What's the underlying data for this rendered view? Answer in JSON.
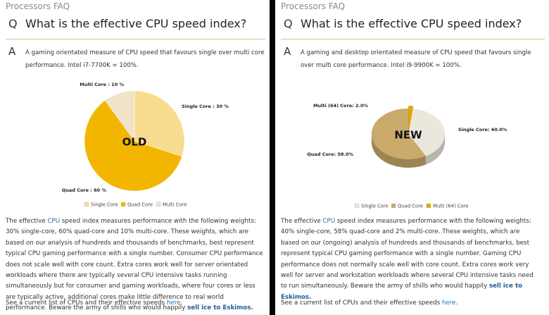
{
  "panels": [
    {
      "site": "Processors FAQ",
      "q": "Q",
      "question": "What is the effective CPU speed index?",
      "a": "A",
      "answer": "A gaming orientated measure of CPU speed that favours single over multi core performance. Intel i7-7700K = 100%.",
      "body": [
        {
          "text": "The effective ",
          "style": "plain"
        },
        {
          "text": "CPU",
          "style": "link"
        },
        {
          "text": " speed index measures performance with the following weights: 30% single-core, 60% quad-core and 10% multi-core. These weights, which are based on our analysis of hundreds and thousands of benchmarks, best represent typical CPU gaming performance with a single number. Consumer CPU performance does not scale well with core count. Extra cores work well for server orientated workloads where there are typically several CPU intensive tasks running simultaneously but for consumer and gaming workloads, where four cores or less are typically active, additional cores make little difference to real world performance. Beware the army of shills who would happily ",
          "style": "plain"
        },
        {
          "text": "sell ice to Eskimos.",
          "style": "bold-link"
        }
      ],
      "footer": [
        {
          "text": "See a current list of CPUs and their effective speeds ",
          "style": "plain"
        },
        {
          "text": "here",
          "style": "link"
        },
        {
          "text": ".",
          "style": "plain"
        }
      ]
    },
    {
      "site": "Processors FAQ",
      "q": "Q",
      "question": "What is the effective CPU speed index?",
      "a": "A",
      "answer": "A gaming and desktop orientated measure of CPU speed that favours single over multi core performance. Intel i9-9900K = 100%.",
      "body": [
        {
          "text": "The effective ",
          "style": "plain"
        },
        {
          "text": "CPU",
          "style": "link"
        },
        {
          "text": " speed index measures performance with the following weights: 40% single-core, 58% quad-core and 2% multi-core. These weights, which are based on our (ongoing) analysis of hundreds and thousands of benchmarks, best represent typical CPU gaming performance with a single number. Gaming CPU performance does not normally scale well with core count. Extra cores work very well for server and workstation workloads where several CPU intensive tasks need to run simultaneously. Beware the army of shills who would happily ",
          "style": "plain"
        },
        {
          "text": "sell ice to Eskimos.",
          "style": "bold-link"
        }
      ],
      "footer": [
        {
          "text": "See a current list of CPUs and their effective speeds ",
          "style": "plain"
        },
        {
          "text": "here",
          "style": "link"
        },
        {
          "text": ".",
          "style": "plain"
        }
      ]
    }
  ],
  "chart_data": [
    {
      "type": "pie",
      "style": "flat",
      "annotation": "OLD",
      "categories": [
        "Single Core",
        "Quad Core",
        "Multi Core"
      ],
      "values": [
        30,
        60,
        10
      ],
      "value_labels": [
        "Single Core : 30 %",
        "Quad Core : 60 %",
        "Multi Core : 10 %"
      ],
      "colors": [
        "#f8dc8f",
        "#f2b600",
        "#efe4c8"
      ]
    },
    {
      "type": "pie",
      "style": "3d",
      "annotation": "NEW",
      "categories": [
        "Single Core",
        "Quad Core",
        "Multi (64) Core"
      ],
      "values": [
        40,
        58,
        2
      ],
      "value_labels": [
        "Single Core: 40.0%",
        "Quad Core: 58.0%",
        "Multi (64) Core: 2.0%"
      ],
      "colors": [
        "#ebe7dc",
        "#c9aa6b",
        "#e3a800"
      ]
    }
  ]
}
